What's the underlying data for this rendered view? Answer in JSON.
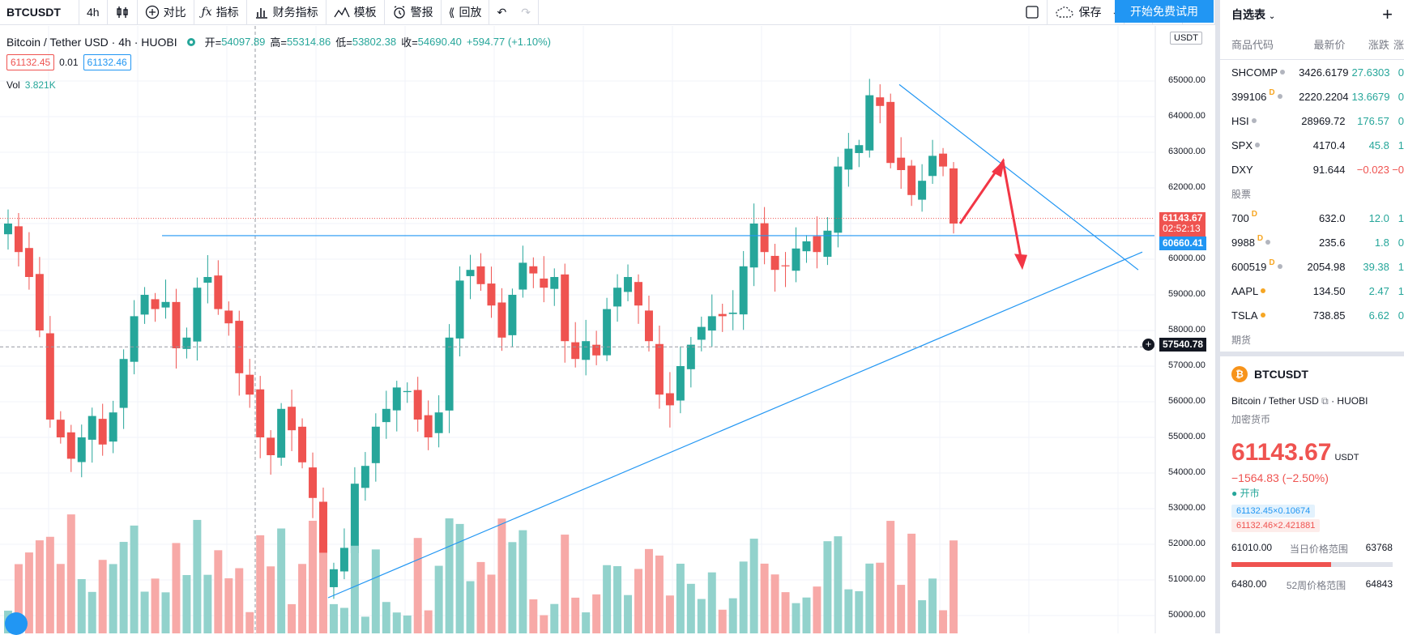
{
  "toolbar": {
    "symbol": "BTCUSDT",
    "interval": "4h",
    "compare": "对比",
    "indicators": "指标",
    "financials": "财务指标",
    "templates": "模板",
    "alerts": "警报",
    "replay": "回放",
    "save": "保存",
    "cta": "开始免费试用"
  },
  "legend": {
    "title": "Bitcoin / Tether USD · 4h · HUOBI",
    "open_label": "开=",
    "open": "54097.89",
    "high_label": "高=",
    "high": "55314.86",
    "low_label": "低=",
    "low": "53802.38",
    "close_label": "收=",
    "close": "54690.40",
    "change": "+594.77 (+1.10%)",
    "bid": "61132.45",
    "spread": "0.01",
    "ask": "61132.46",
    "vol_label": "Vol",
    "vol": "3.821K"
  },
  "axis": {
    "currency": "USDT",
    "ticks": [
      "65000.00",
      "64000.00",
      "63000.00",
      "62000.00",
      "61000.00",
      "60000.00",
      "59000.00",
      "58000.00",
      "57000.00",
      "56000.00",
      "55000.00",
      "54000.00",
      "53000.00",
      "52000.00",
      "51000.00",
      "50000.00"
    ],
    "last_price": "61143.67",
    "countdown": "02:52:13",
    "hline_price": "60660.41",
    "crosshair_price": "57540.78"
  },
  "chart_data": {
    "type": "candlestick",
    "ylim": [
      49700,
      65600
    ],
    "candles_note_free": true,
    "closes": [
      61000,
      60200,
      59500,
      58000,
      55500,
      55000,
      54400,
      55000,
      55600,
      54800,
      55700,
      57200,
      58400,
      59000,
      58600,
      58800,
      57500,
      57800,
      59200,
      59500,
      58600,
      58200,
      56800,
      56200,
      55000,
      54500,
      55800,
      55200,
      54300,
      53300,
      50800,
      51300,
      51900,
      53700,
      54200,
      55300,
      55800,
      56400,
      56300,
      55500,
      55000,
      55700,
      57800,
      59400,
      59700,
      59300,
      58700,
      57800,
      59000,
      59900,
      59600,
      59200,
      59500,
      57700,
      57200,
      57700,
      57300,
      58600,
      59200,
      59500,
      58700,
      57700,
      56200,
      55900,
      57000,
      57600,
      58100,
      58400,
      58400,
      58500,
      59800,
      61000,
      60200,
      59700,
      59800,
      60300,
      60500,
      60200,
      60800,
      62600,
      63100,
      63200,
      64600,
      64300,
      62700,
      62500,
      61800,
      62200,
      62900,
      62600,
      61000
    ],
    "lines": {
      "support_from": [
        1,
        50500
      ],
      "horizontal": 60660.41,
      "resistance_from": [
        64900,
        63300
      ]
    }
  },
  "watchlist": {
    "title": "自选表",
    "add": "+",
    "cols": [
      "商品代码",
      "最新价",
      "涨跌",
      "涨"
    ],
    "indices": [
      {
        "sym": "SHCOMP",
        "price": "3426.6179",
        "chg": "27.6303",
        "pct": "0",
        "dot": "#b2b5be",
        "d": false
      },
      {
        "sym": "399106",
        "price": "2220.2204",
        "chg": "13.6679",
        "pct": "0",
        "dot": "#b2b5be",
        "d": true
      },
      {
        "sym": "HSI",
        "price": "28969.72",
        "chg": "176.57",
        "pct": "0",
        "dot": "#b2b5be",
        "d": false
      },
      {
        "sym": "SPX",
        "price": "4170.4",
        "chg": "45.8",
        "pct": "1",
        "dot": "#b2b5be",
        "d": false
      },
      {
        "sym": "DXY",
        "price": "91.644",
        "chg": "−0.023",
        "pct": "−0",
        "dot": "",
        "d": false,
        "neg": true
      }
    ],
    "stocks_label": "股票",
    "stocks": [
      {
        "sym": "700",
        "price": "632.0",
        "chg": "12.0",
        "pct": "1",
        "dot": "",
        "d": true
      },
      {
        "sym": "9988",
        "price": "235.6",
        "chg": "1.8",
        "pct": "0",
        "dot": "#b2b5be",
        "d": true
      },
      {
        "sym": "600519",
        "price": "2054.98",
        "chg": "39.38",
        "pct": "1",
        "dot": "#b2b5be",
        "d": true
      },
      {
        "sym": "AAPL",
        "price": "134.50",
        "chg": "2.47",
        "pct": "1",
        "dot": "#f6a623",
        "d": false
      },
      {
        "sym": "TSLA",
        "price": "738.85",
        "chg": "6.62",
        "pct": "0",
        "dot": "#f6a623",
        "d": false
      }
    ],
    "futures_label": "期货"
  },
  "detail": {
    "symbol": "BTCUSDT",
    "desc": "Bitcoin / Tether USD",
    "exchange": "HUOBI",
    "category": "加密货币",
    "price": "61143.67",
    "currency": "USDT",
    "change": "−1564.83 (−2.50%)",
    "market": "开市",
    "bid_chip": "61132.45×0.10674",
    "ask_chip": "61132.46×2.421881",
    "day_low": "61010.00",
    "day_label": "当日价格范围",
    "day_high": "63768",
    "week_low": "6480.00",
    "week_label": "52周价格范围",
    "week_high": "64843"
  }
}
